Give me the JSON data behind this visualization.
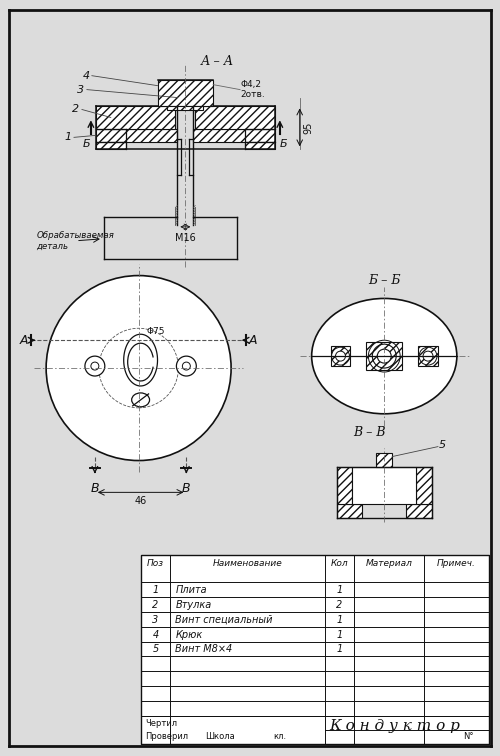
{
  "bg_color": "#dcdcdc",
  "line_color": "#111111",
  "title": "К о н д у к т о р",
  "table_rows": [
    {
      "pos": "1",
      "name": "Плита",
      "qty": "1"
    },
    {
      "pos": "2",
      "name": "Втулка",
      "qty": "2"
    },
    {
      "pos": "3",
      "name": "Винт специальный",
      "qty": "1"
    },
    {
      "pos": "4",
      "name": "Крюк",
      "qty": "1"
    },
    {
      "pos": "5",
      "name": "Винт М8×4",
      "qty": "1"
    }
  ],
  "col_headers": [
    "Поз",
    "Наименование",
    "Кол",
    "Материал",
    "Примеч."
  ],
  "bottom_labels": [
    "Чертил",
    "Проверил",
    "Школа"
  ],
  "section_labels": {
    "AA": "А – А",
    "BB": "Б – Б",
    "VV": "В – В"
  },
  "dim_labels": {
    "phi42": "Φ4,2\n2отв.",
    "m16": "М16",
    "n95": "95",
    "phi75": "Φ75",
    "dim46": "46"
  },
  "part_labels": [
    "1",
    "2",
    "3",
    "4",
    "5"
  ],
  "text_workpiece": "Обрабатываемая\nдеталь"
}
